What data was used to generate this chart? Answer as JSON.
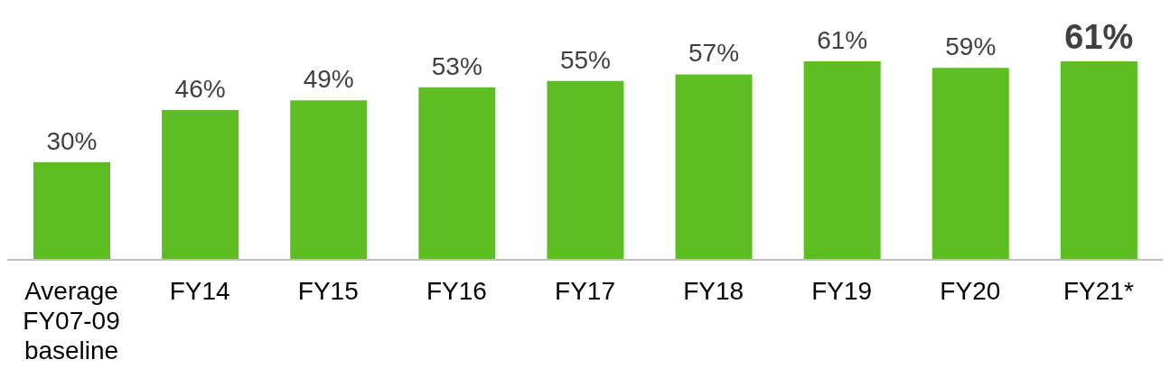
{
  "chart_data": {
    "type": "bar",
    "categories": [
      "Average FY07-09 baseline",
      "FY14",
      "FY15",
      "FY16",
      "FY17",
      "FY18",
      "FY19",
      "FY20",
      "FY21*"
    ],
    "values": [
      30,
      46,
      49,
      53,
      55,
      57,
      61,
      59,
      61
    ],
    "value_labels": [
      "30%",
      "46%",
      "49%",
      "53%",
      "55%",
      "57%",
      "61%",
      "59%",
      "61%"
    ],
    "color": "#5ebd23"
  }
}
